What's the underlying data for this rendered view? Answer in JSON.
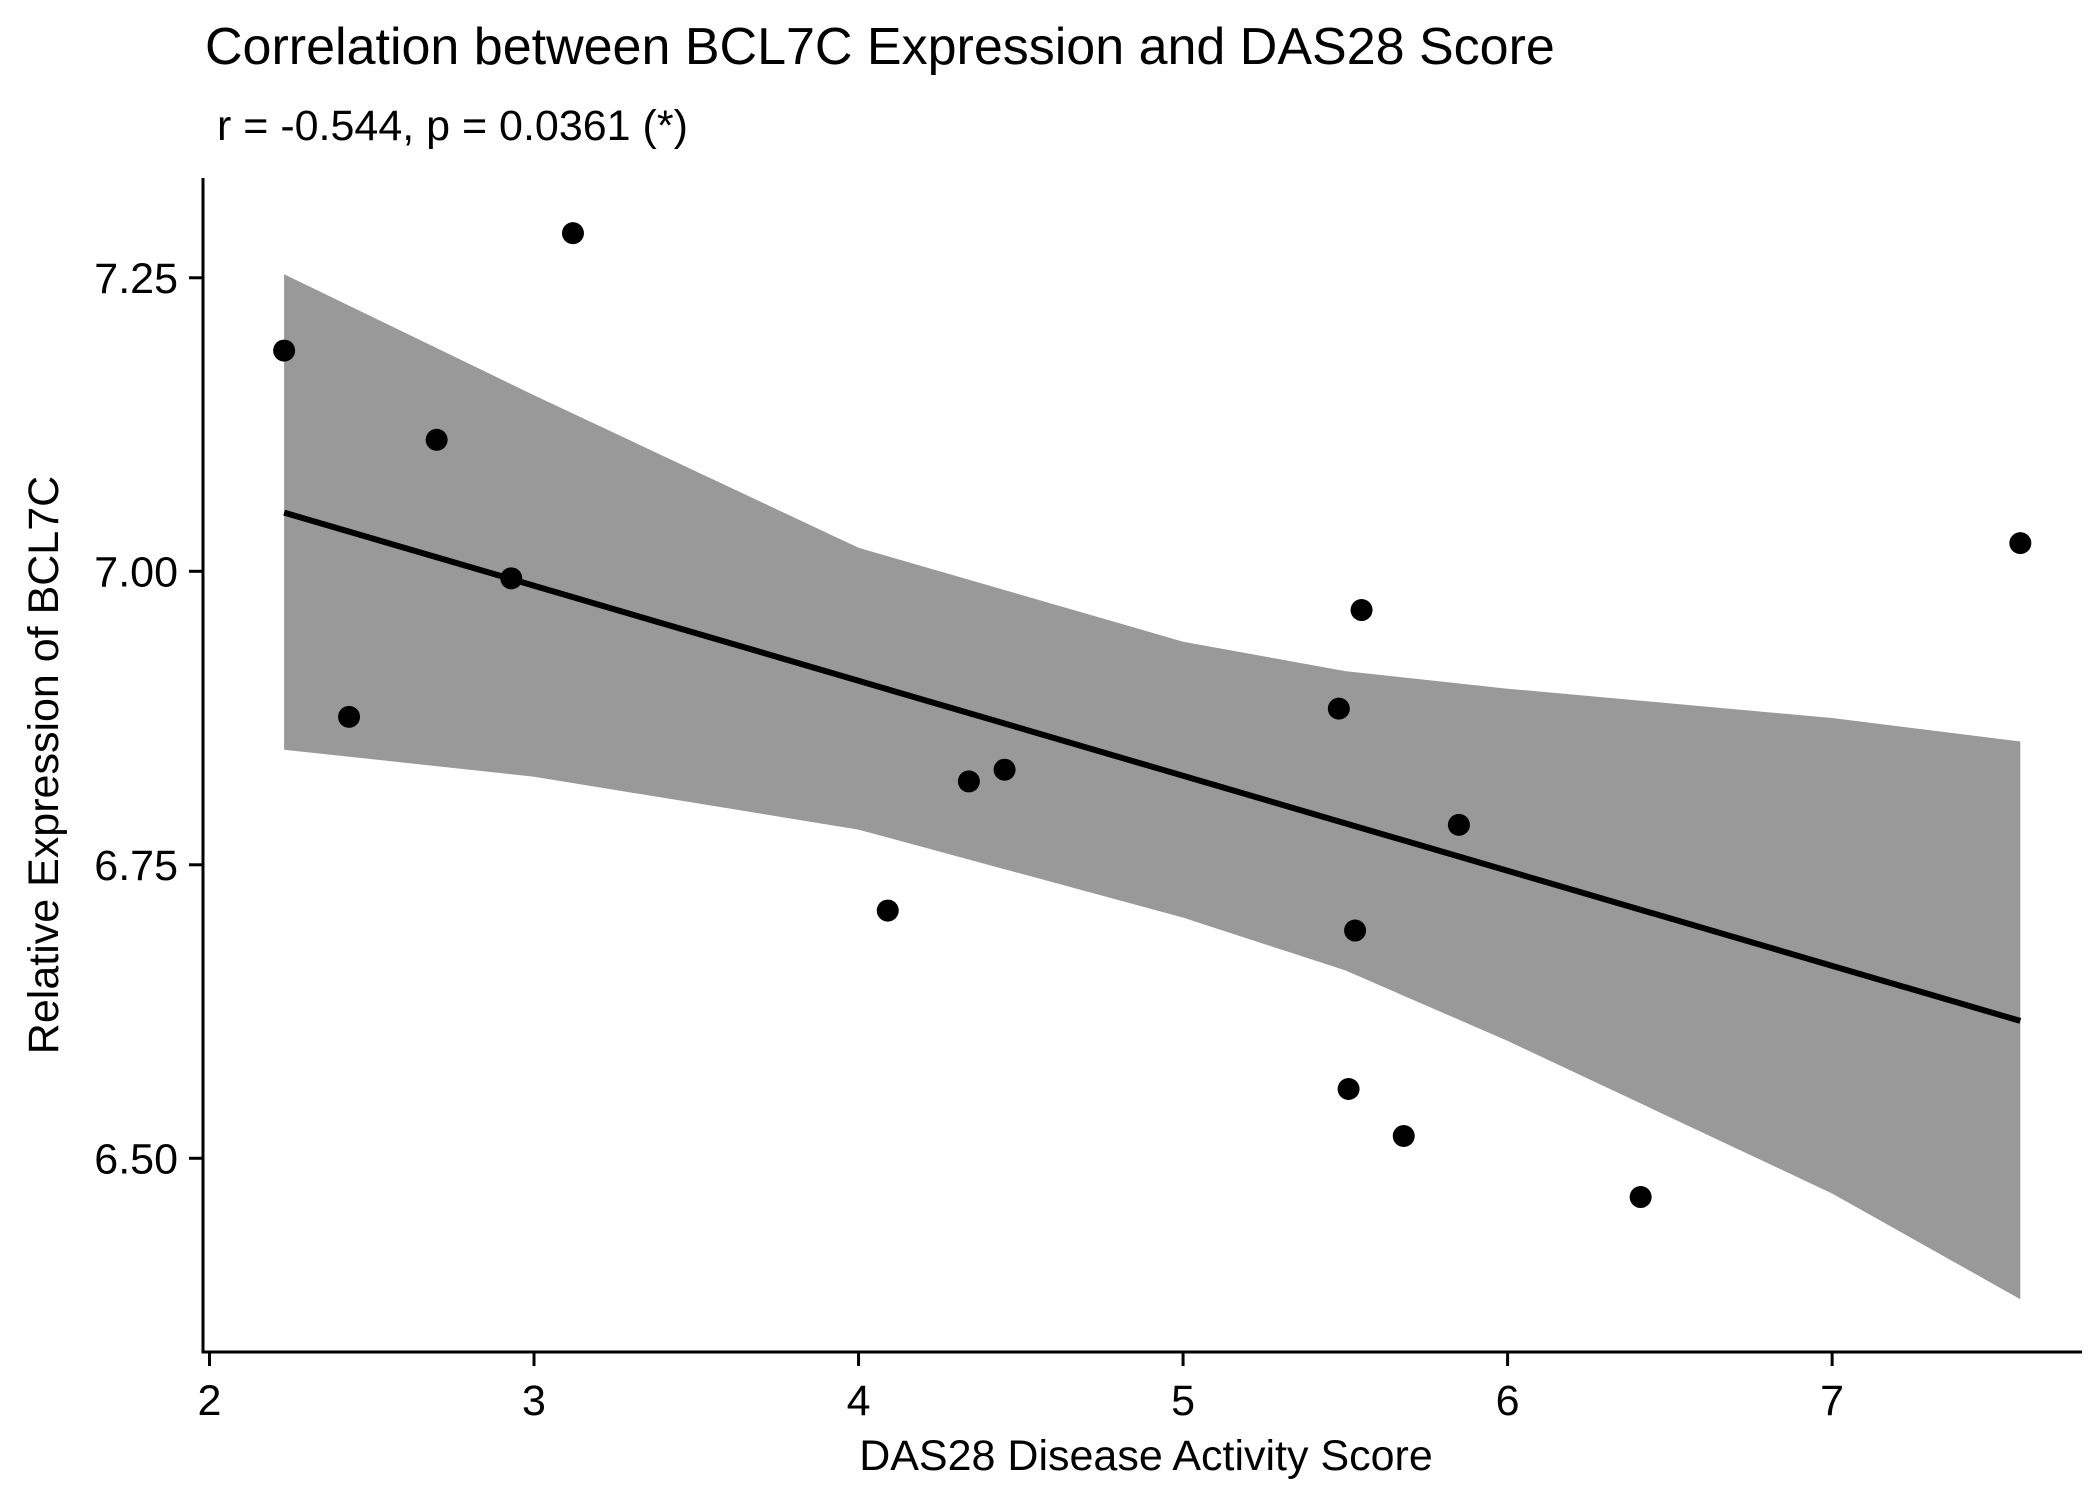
{
  "chart_data": {
    "type": "scatter",
    "title": "Correlation between BCL7C Expression and DAS28 Score",
    "subtitle": "r = -0.544, p = 0.0361 (*)",
    "xlabel": "DAS28 Disease Activity Score",
    "ylabel": "Relative Expression of BCL7C",
    "xlim": [
      1.98,
      7.77
    ],
    "ylim": [
      6.335,
      7.335
    ],
    "x_ticks": [
      2,
      3,
      4,
      5,
      6,
      7
    ],
    "x_tick_labels": [
      "2",
      "3",
      "4",
      "5",
      "6",
      "7"
    ],
    "y_ticks": [
      6.5,
      6.75,
      7.0,
      7.25
    ],
    "y_tick_labels": [
      "6.50",
      "6.75",
      "7.00",
      "7.25"
    ],
    "grid": false,
    "legend": "none",
    "colors": {
      "points": "#000000",
      "fit_line": "#000000",
      "ci_band": "#999999",
      "axes": "#000000"
    },
    "points": [
      {
        "x": 2.23,
        "y": 7.188
      },
      {
        "x": 2.43,
        "y": 6.876
      },
      {
        "x": 2.7,
        "y": 7.112
      },
      {
        "x": 2.93,
        "y": 6.994
      },
      {
        "x": 3.12,
        "y": 7.288
      },
      {
        "x": 4.09,
        "y": 6.711
      },
      {
        "x": 4.34,
        "y": 6.821
      },
      {
        "x": 4.45,
        "y": 6.831
      },
      {
        "x": 5.48,
        "y": 6.883
      },
      {
        "x": 5.51,
        "y": 6.559
      },
      {
        "x": 5.53,
        "y": 6.694
      },
      {
        "x": 5.55,
        "y": 6.967
      },
      {
        "x": 5.68,
        "y": 6.519
      },
      {
        "x": 5.85,
        "y": 6.784
      },
      {
        "x": 6.41,
        "y": 6.467
      },
      {
        "x": 7.58,
        "y": 7.024
      }
    ],
    "fit_line": {
      "x": [
        2.23,
        7.58
      ],
      "y": [
        7.05,
        6.617
      ]
    },
    "confidence_band": {
      "x": [
        2.23,
        3.0,
        4.0,
        5.0,
        5.5,
        6.0,
        7.0,
        7.58
      ],
      "upper": [
        7.253,
        7.15,
        7.02,
        6.94,
        6.915,
        6.9,
        6.875,
        6.855
      ],
      "lower": [
        6.848,
        6.825,
        6.78,
        6.705,
        6.66,
        6.6,
        6.47,
        6.38
      ]
    }
  }
}
